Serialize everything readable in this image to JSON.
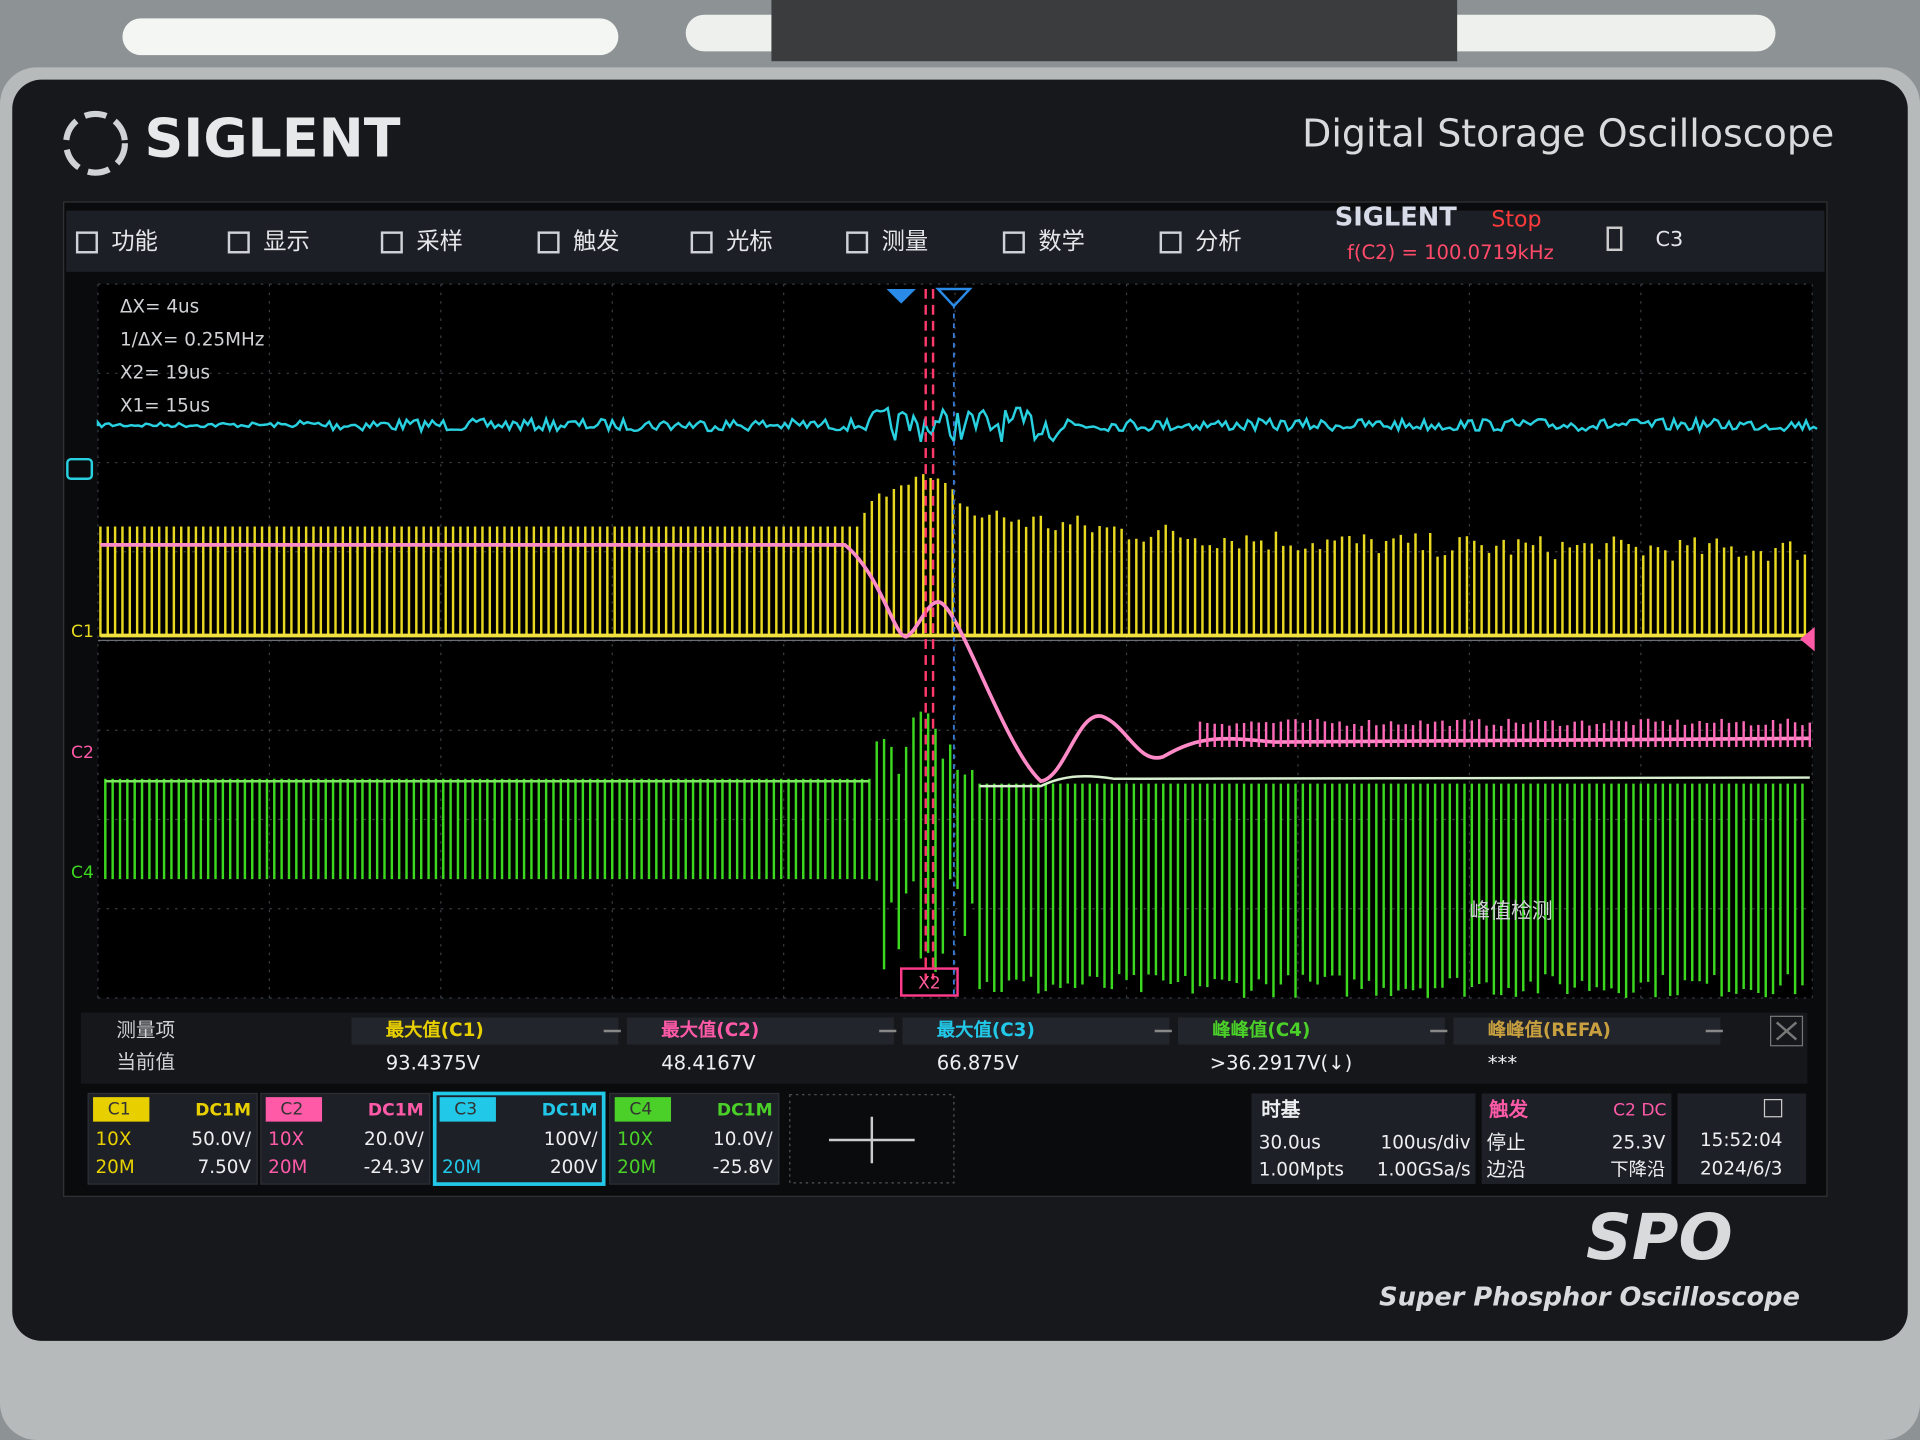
{
  "bezel": {
    "brand": "SIGLENT",
    "model_title": "Digital Storage Oscilloscope",
    "spo_logo": "SPO",
    "spo_caption": "Super Phosphor Oscilloscope"
  },
  "menu": [
    "功能",
    "显示",
    "采样",
    "触发",
    "光标",
    "测量",
    "数学",
    "分析"
  ],
  "status": {
    "brand": "SIGLENT",
    "state": "Stop",
    "freq": "f(C2) = 100.0719kHz",
    "channel": "C3"
  },
  "cursor_info": [
    "ΔX= 4us",
    "1/ΔX= 0.25MHz",
    "X2= 19us",
    "X1= 15us"
  ],
  "channel_markers": [
    "C1",
    "C2",
    "C4"
  ],
  "cursor_label": "X2",
  "overlay": "峰值检测",
  "measure": {
    "header": "测量项",
    "row": "当前值",
    "items": [
      {
        "name": "最大值(C1)",
        "value": "93.4375V"
      },
      {
        "name": "最大值(C2)",
        "value": "48.4167V"
      },
      {
        "name": "最大值(C3)",
        "value": "66.875V"
      },
      {
        "name": "峰峰值(C4)",
        "value": ">36.2917V(↓)"
      },
      {
        "name": "峰峰值(REFA)",
        "value": "***"
      }
    ]
  },
  "channels": [
    {
      "name": "C1",
      "coupling": "DC1M",
      "probe": "10X",
      "scale": "50.0V/",
      "bw": "20M",
      "offset": "7.50V"
    },
    {
      "name": "C2",
      "coupling": "DC1M",
      "probe": "10X",
      "scale": "20.0V/",
      "bw": "20M",
      "offset": "-24.3V"
    },
    {
      "name": "C3",
      "coupling": "DC1M",
      "probe": "",
      "scale": "100V/",
      "bw": "20M",
      "offset": "200V"
    },
    {
      "name": "C4",
      "coupling": "DC1M",
      "probe": "10X",
      "scale": "10.0V/",
      "bw": "20M",
      "offset": "-25.8V"
    }
  ],
  "timebase": {
    "title": "时基",
    "delay": "30.0us",
    "scale": "100us/div",
    "depth": "1.00Mpts",
    "rate": "1.00GSa/s"
  },
  "trigger": {
    "title": "触发",
    "source": "C2 DC",
    "state": "停止",
    "level": "25.3V",
    "type": "边沿",
    "slope": "下降沿"
  },
  "clock": {
    "time": "15:52:04",
    "date": "2024/6/3"
  }
}
